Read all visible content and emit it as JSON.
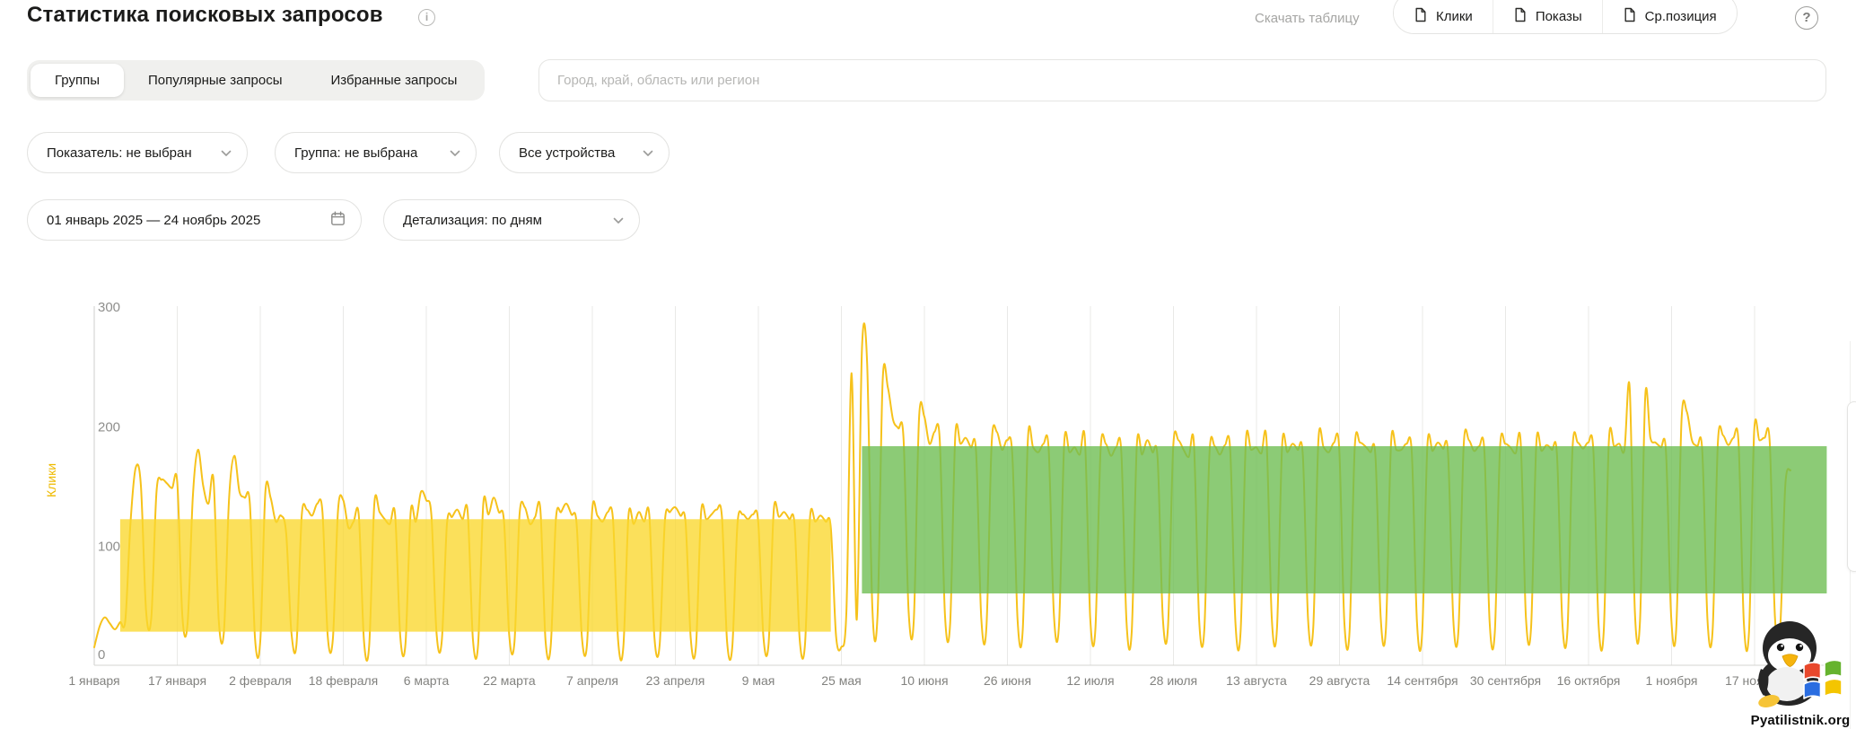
{
  "header": {
    "title": "Статистика поисковых запросов",
    "download_label": "Скачать таблицу",
    "metric_buttons": [
      {
        "label": "Клики"
      },
      {
        "label": "Показы"
      },
      {
        "label": "Ср.позиция"
      }
    ],
    "help_label": "?",
    "info_label": "i"
  },
  "tabs": [
    {
      "label": "Группы",
      "active": true
    },
    {
      "label": "Популярные запросы",
      "active": false
    },
    {
      "label": "Избранные запросы",
      "active": false
    }
  ],
  "region_search": {
    "placeholder": "Город, край, область или регион"
  },
  "filters": {
    "metric": "Показатель: не выбран",
    "group": "Группа: не выбрана",
    "devices": "Все устройства",
    "date_range": "01 январь 2025 — 24 ноябрь 2025",
    "detail": "Детализация: по дням"
  },
  "watermark": {
    "text": "Pyatilistnik.org"
  },
  "chart_data": {
    "type": "line",
    "title": "",
    "ylabel": "Клики",
    "series_name": "Клики",
    "x_start_date": "1 января 2025",
    "x_end_date": "24 ноября 2025",
    "x_tick_interval_days": 16,
    "x_tick_labels": [
      "1 января",
      "17 января",
      "2 февраля",
      "18 февраля",
      "6 марта",
      "22 марта",
      "7 апреля",
      "23 апреля",
      "9 мая",
      "25 мая",
      "10 июня",
      "26 июня",
      "12 июля",
      "28 июля",
      "13 августа",
      "29 августа",
      "14 сентября",
      "30 сентября",
      "16 октября",
      "1 ноября",
      "17 ноября"
    ],
    "ylim": [
      0,
      300
    ],
    "y_ticks": [
      0,
      100,
      200,
      300
    ],
    "grid": "vertical-only",
    "legend": "none",
    "line_color": "#f6c21b",
    "ylabel_color": "#eeba00",
    "values": [
      15,
      32,
      40,
      35,
      30,
      36,
      38,
      120,
      165,
      150,
      45,
      40,
      145,
      155,
      152,
      148,
      153,
      40,
      35,
      140,
      180,
      150,
      135,
      155,
      38,
      28,
      140,
      175,
      145,
      140,
      135,
      22,
      20,
      145,
      140,
      120,
      125,
      110,
      28,
      18,
      125,
      130,
      125,
      135,
      128,
      25,
      22,
      130,
      138,
      115,
      120,
      125,
      20,
      16,
      135,
      128,
      122,
      118,
      126,
      24,
      18,
      128,
      120,
      145,
      138,
      125,
      26,
      20,
      118,
      124,
      130,
      122,
      128,
      22,
      17,
      135,
      126,
      140,
      128,
      120,
      25,
      19,
      126,
      132,
      118,
      124,
      130,
      21,
      16,
      122,
      128,
      135,
      126,
      118,
      24,
      18,
      130,
      125,
      120,
      128,
      122,
      20,
      15,
      125,
      118,
      128,
      120,
      126,
      23,
      17,
      120,
      128,
      132,
      125,
      119,
      22,
      16,
      128,
      122,
      126,
      130,
      124,
      20,
      15,
      118,
      126,
      122,
      126,
      120,
      24,
      18,
      130,
      124,
      128,
      122,
      118,
      21,
      16,
      124,
      120,
      125,
      120,
      115,
      25,
      15,
      45,
      244,
      38,
      264,
      252,
      48,
      42,
      238,
      232,
      205,
      198,
      190,
      45,
      38,
      206,
      208,
      185,
      195,
      188,
      42,
      35,
      192,
      185,
      190,
      182,
      178,
      40,
      32,
      185,
      195,
      180,
      188,
      175,
      38,
      30,
      190,
      182,
      178,
      185,
      180,
      42,
      34,
      186,
      178,
      182,
      176,
      188,
      40,
      30,
      180,
      185,
      175,
      182,
      178,
      36,
      28,
      184,
      176,
      188,
      178,
      172,
      40,
      32,
      182,
      188,
      180,
      174,
      185,
      38,
      30,
      178,
      183,
      176,
      184,
      179,
      35,
      28,
      186,
      180,
      182,
      177,
      188,
      40,
      30,
      184,
      178,
      185,
      180,
      175,
      38,
      32,
      188,
      182,
      178,
      186,
      181,
      36,
      28,
      182,
      186,
      183,
      178,
      174,
      40,
      30,
      186,
      180,
      180,
      185,
      177,
      35,
      27,
      183,
      179,
      186,
      181,
      176,
      38,
      30,
      184,
      188,
      179,
      183,
      178,
      36,
      28,
      181,
      185,
      182,
      177,
      186,
      40,
      32,
      185,
      179,
      184,
      180,
      175,
      37,
      29,
      182,
      186,
      181,
      186,
      179,
      35,
      28,
      188,
      183,
      185,
      180,
      232,
      45,
      38,
      225,
      190,
      186,
      182,
      178,
      40,
      32,
      205,
      212,
      188,
      183,
      179,
      38,
      30,
      186,
      192,
      184,
      190,
      185,
      36,
      28,
      195,
      188,
      190,
      186,
      40,
      30,
      150,
      163
    ],
    "bands": [
      {
        "name": "yellow-highlight",
        "color": "rgba(250,215,45,0.78)",
        "day_start": 5,
        "day_end": 142,
        "value_low": 28,
        "value_high": 122
      },
      {
        "name": "green-highlight",
        "color": "rgba(111,190,84,0.80)",
        "day_start": 148,
        "day_end": 334,
        "value_low": 60,
        "value_high": 183
      }
    ]
  }
}
